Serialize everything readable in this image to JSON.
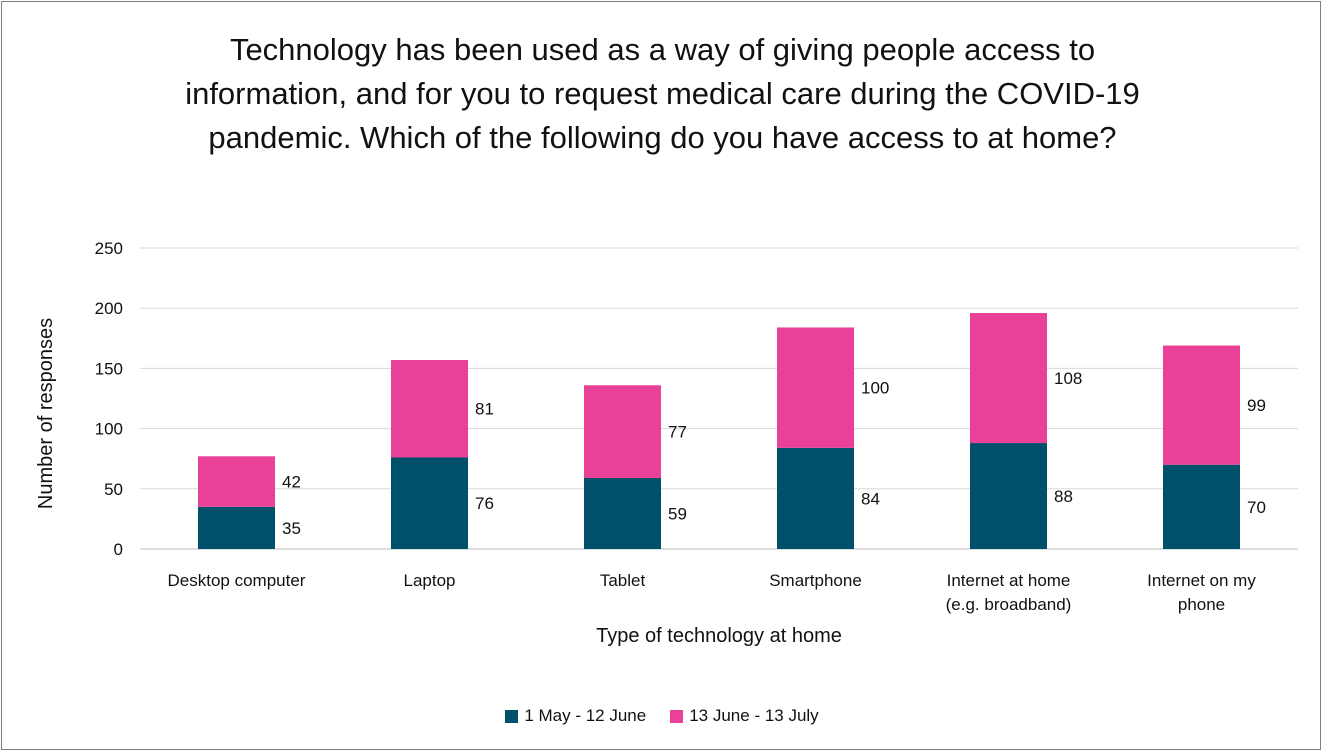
{
  "chart_data": {
    "type": "bar",
    "stacked": true,
    "title": "Technology has been used as a way of giving people access to information, and for you to request medical care during the COVID-19 pandemic. Which of the following do you have access to at home?",
    "xlabel": "Type of technology at home",
    "ylabel": "Number of responses",
    "ylim": [
      0,
      250
    ],
    "yticks": [
      0,
      50,
      100,
      150,
      200,
      250
    ],
    "grid": true,
    "legend_position": "bottom",
    "categories": [
      [
        "Desktop computer"
      ],
      [
        "Laptop"
      ],
      [
        "Tablet"
      ],
      [
        "Smartphone"
      ],
      [
        "Internet at home",
        "(e.g. broadband)"
      ],
      [
        "Internet on my",
        "phone"
      ]
    ],
    "series": [
      {
        "name": "1 May - 12 June",
        "color": "#00506A",
        "values": [
          35,
          76,
          59,
          84,
          88,
          70
        ]
      },
      {
        "name": "13 June - 13 July",
        "color": "#E84197",
        "values": [
          42,
          81,
          77,
          100,
          108,
          99
        ]
      }
    ]
  }
}
